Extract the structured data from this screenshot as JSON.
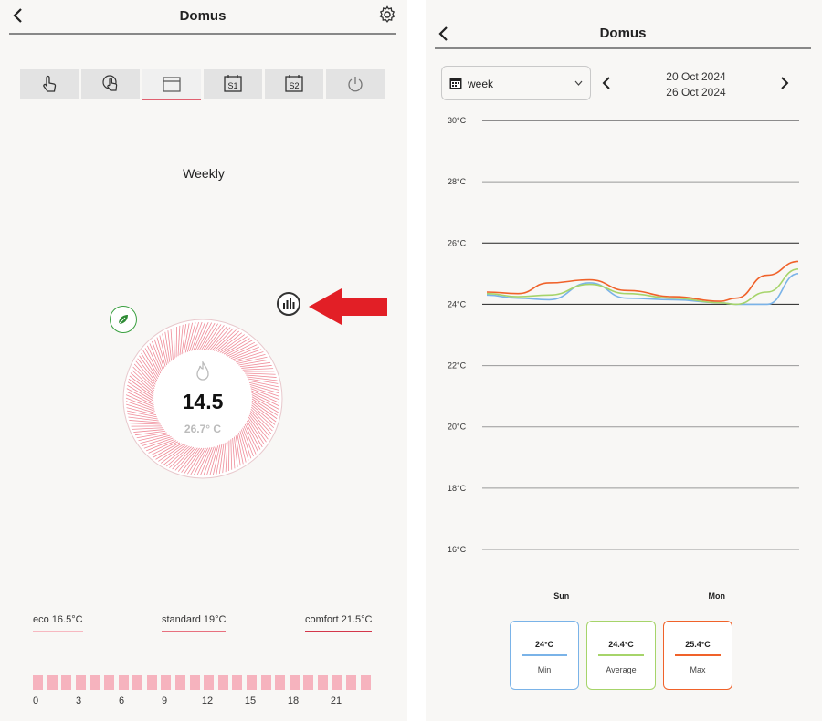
{
  "left": {
    "title": "Domus",
    "mode_label": "Weekly",
    "setpoint": "14.5",
    "current_temp": "26.7° C",
    "mode_tabs": [
      {
        "name": "manual",
        "label": ""
      },
      {
        "name": "timer",
        "label": ""
      },
      {
        "name": "weekly",
        "label": ""
      },
      {
        "name": "s1",
        "label": "S1"
      },
      {
        "name": "s2",
        "label": "S2"
      },
      {
        "name": "power",
        "label": ""
      }
    ],
    "active_tab": "weekly",
    "presets": [
      {
        "label": "eco 16.5°C",
        "color": "#f7b8c0"
      },
      {
        "label": "standard 19°C",
        "color": "#e8707e"
      },
      {
        "label": "comfort 21.5°C",
        "color": "#d4364a"
      }
    ],
    "hour_labels": [
      "0",
      "3",
      "6",
      "9",
      "12",
      "15",
      "18",
      "21"
    ],
    "schedule_slot_count": 24,
    "icons": [
      "back-arrow-icon",
      "gear-icon",
      "hand-pointer-icon",
      "timer-hand-icon",
      "calendar-icon",
      "s1-icon",
      "s2-icon",
      "power-icon",
      "bar-chart-icon",
      "leaf-icon",
      "flame-icon",
      "red-arrow-icon"
    ]
  },
  "right": {
    "title": "Domus",
    "range_select": "week",
    "date_from": "20 Oct 2024",
    "date_to": "26 Oct 2024",
    "stats": [
      {
        "value": "24°C",
        "name": "Min",
        "color": "#7ab3e8"
      },
      {
        "value": "24.4°C",
        "name": "Average",
        "color": "#a6d46a"
      },
      {
        "value": "25.4°C",
        "name": "Max",
        "color": "#f0622a"
      }
    ]
  },
  "chart_data": {
    "type": "line",
    "title": "",
    "xlabel": "",
    "ylabel": "",
    "ylim": [
      16,
      30
    ],
    "yticks": [
      30,
      28,
      26,
      24,
      22,
      20,
      18,
      16
    ],
    "ytick_labels": [
      "30°C",
      "28°C",
      "26°C",
      "24°C",
      "22°C",
      "20°C",
      "18°C",
      "16°C"
    ],
    "x_labels": [
      "Sun",
      "Mon"
    ],
    "x_label_positions": [
      0.25,
      0.74
    ],
    "grid": true,
    "series": [
      {
        "name": "Min",
        "color": "#7ab3e8",
        "x": [
          0,
          0.1,
          0.2,
          0.33,
          0.45,
          0.6,
          0.75,
          0.8,
          0.9,
          1.0
        ],
        "y": [
          24.3,
          24.2,
          24.15,
          24.7,
          24.2,
          24.15,
          24.05,
          24.0,
          24.0,
          25.0
        ]
      },
      {
        "name": "Average",
        "color": "#a6d46a",
        "x": [
          0,
          0.1,
          0.2,
          0.33,
          0.45,
          0.6,
          0.75,
          0.8,
          0.9,
          1.0
        ],
        "y": [
          24.35,
          24.25,
          24.3,
          24.65,
          24.35,
          24.2,
          24.05,
          24.0,
          24.4,
          25.15
        ]
      },
      {
        "name": "Max",
        "color": "#f0622a",
        "x": [
          0,
          0.1,
          0.2,
          0.33,
          0.45,
          0.6,
          0.75,
          0.8,
          0.9,
          1.0
        ],
        "y": [
          24.4,
          24.35,
          24.7,
          24.8,
          24.45,
          24.25,
          24.1,
          24.2,
          24.95,
          25.4
        ]
      }
    ]
  }
}
